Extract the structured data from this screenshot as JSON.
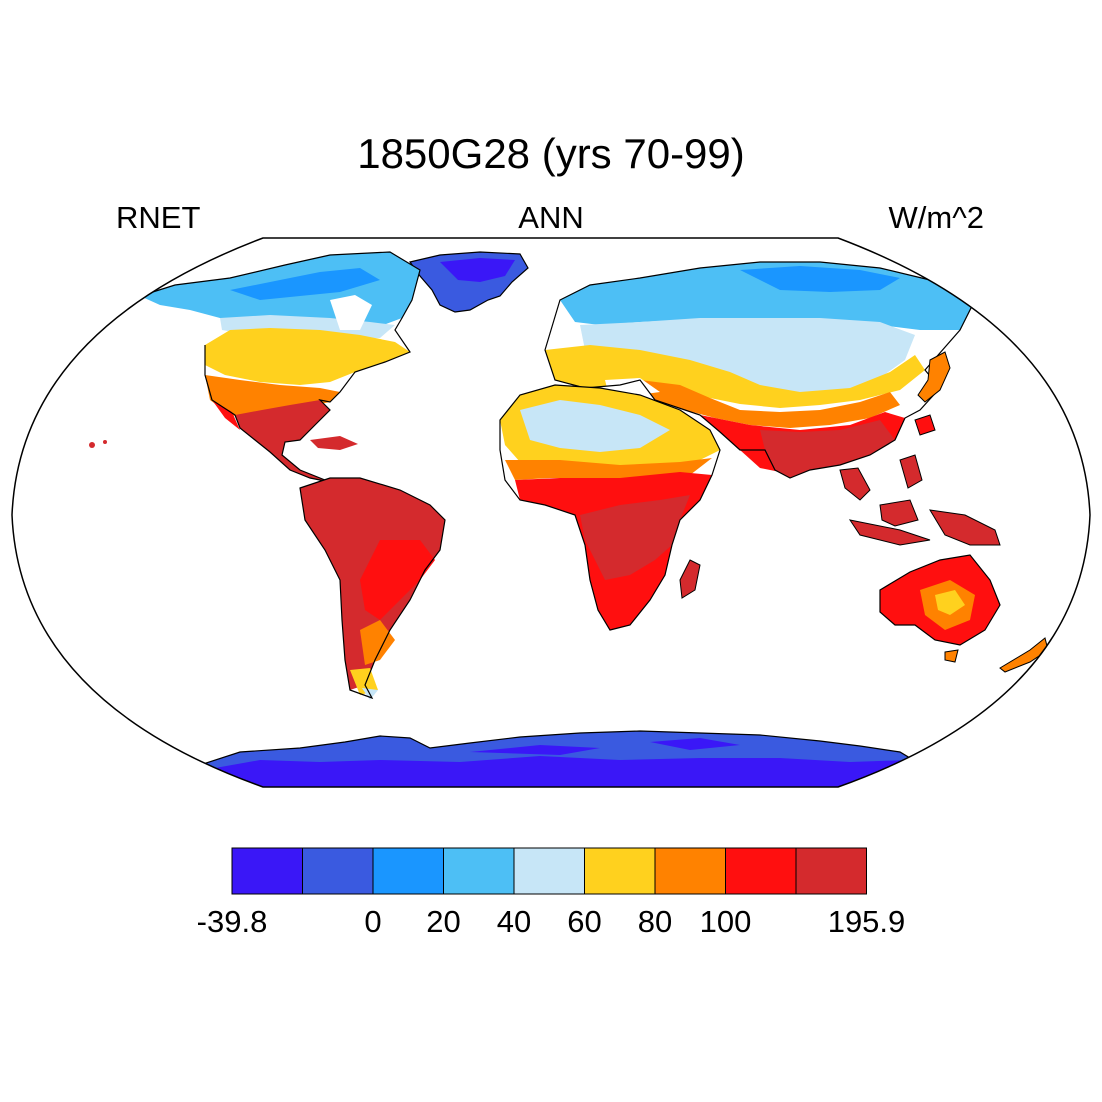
{
  "title": "1850G28 (yrs 70-99)",
  "left_label": "RNET",
  "center_label": "ANN",
  "right_label": "W/m^2",
  "colorbar": {
    "colors": [
      "#3a17f7",
      "#3a5ae0",
      "#1a96ff",
      "#4dbff5",
      "#c7e6f7",
      "#ffd11e",
      "#ff8200",
      "#ff0f0f",
      "#d42a2d"
    ],
    "tick_labels": [
      "-39.8",
      "0",
      "20",
      "40",
      "60",
      "80",
      "100",
      "195.9"
    ],
    "tick_boundaries": [
      0,
      2,
      3,
      4,
      5,
      6,
      7,
      9
    ]
  }
}
